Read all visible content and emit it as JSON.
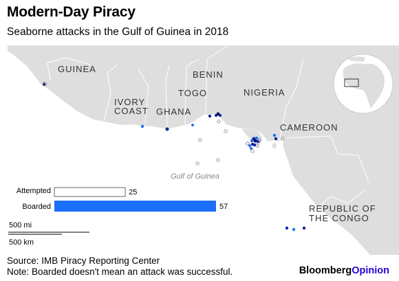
{
  "header": {
    "title": "Modern-Day Piracy",
    "subtitle": "Seaborne attacks in the Gulf of Guinea in 2018"
  },
  "map": {
    "labels": {
      "guinea": "GUINEA",
      "ivory_1": "IVORY",
      "ivory_2": "COAST",
      "ghana": "GHANA",
      "benin": "BENIN",
      "togo": "TOGO",
      "nigeria": "NIGERIA",
      "cameroon": "CAMEROON",
      "congo_1": "REPUBLIC OF",
      "congo_2": "THE CONGO",
      "gulf": "Gulf of Guinea"
    },
    "colors": {
      "land": "#dedede",
      "sea": "#ffffff",
      "boarded": "#1c6ff8",
      "boarded_dark": "#0b23a8",
      "attempted": "#666666"
    }
  },
  "legend": {
    "attempted_label": "Attempted",
    "attempted_value": "25",
    "boarded_label": "Boarded",
    "boarded_value": "57",
    "max": 57,
    "scale_mi": "500 mi",
    "scale_km": "500 km"
  },
  "chart_data": {
    "type": "bar",
    "categories": [
      "Attempted",
      "Boarded"
    ],
    "values": [
      25,
      57
    ],
    "title": "Modern-Day Piracy",
    "subtitle": "Seaborne attacks in the Gulf of Guinea in 2018"
  },
  "footer": {
    "source": "Source: IMB Piracy Reporting Center",
    "note": "Note: Boarded doesn't mean an attack was successful.",
    "brand_a": "Bloomberg",
    "brand_b": "Opinion"
  }
}
